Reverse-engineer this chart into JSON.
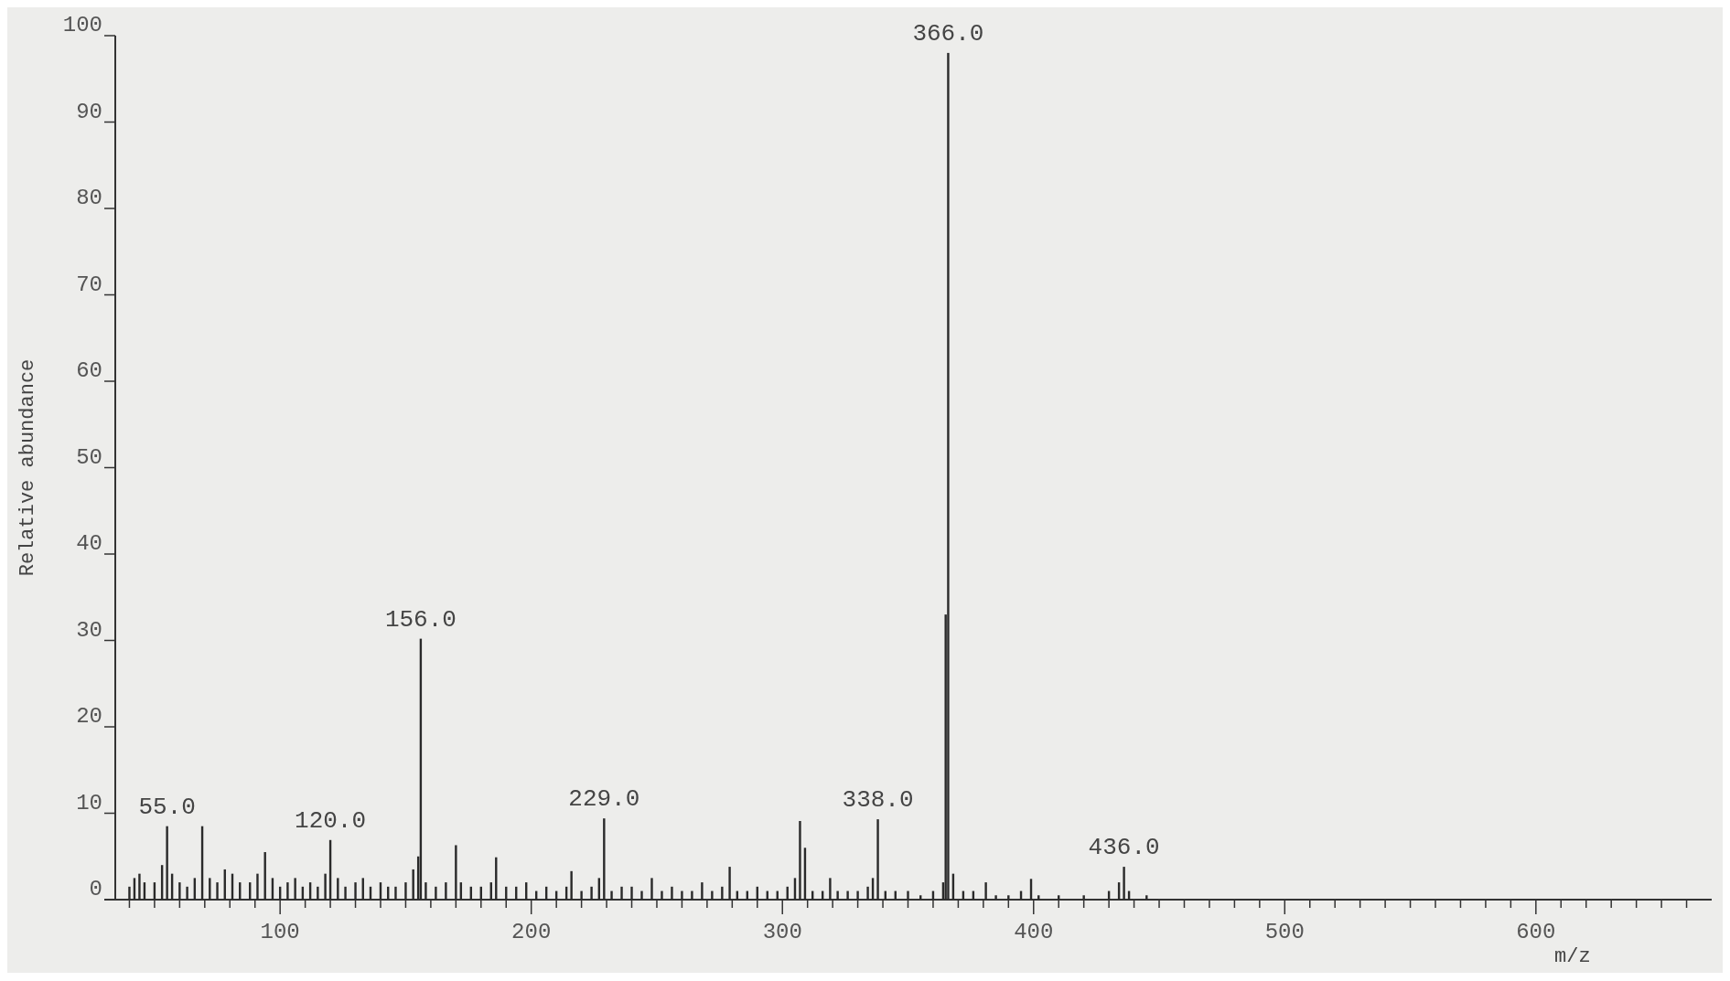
{
  "chart_data": {
    "type": "bar",
    "xlabel": "m/z",
    "ylabel": "Relative abundance",
    "color": "#2a2a2a",
    "xlim": [
      30,
      670
    ],
    "ylim": [
      0,
      100
    ],
    "xticks": [
      {
        "value": 40,
        "label": null
      },
      {
        "value": 50,
        "label": null
      },
      {
        "value": 60,
        "label": null
      },
      {
        "value": 70,
        "label": null
      },
      {
        "value": 80,
        "label": null
      },
      {
        "value": 90,
        "label": null
      },
      100,
      {
        "value": 110,
        "label": null
      },
      {
        "value": 120,
        "label": null
      },
      {
        "value": 130,
        "label": null
      },
      {
        "value": 140,
        "label": null
      },
      {
        "value": 150,
        "label": null
      },
      {
        "value": 160,
        "label": null
      },
      {
        "value": 170,
        "label": null
      },
      {
        "value": 180,
        "label": null
      },
      {
        "value": 190,
        "label": null
      },
      200,
      {
        "value": 210,
        "label": null
      },
      {
        "value": 220,
        "label": null
      },
      {
        "value": 230,
        "label": null
      },
      {
        "value": 240,
        "label": null
      },
      {
        "value": 250,
        "label": null
      },
      {
        "value": 260,
        "label": null
      },
      {
        "value": 270,
        "label": null
      },
      {
        "value": 280,
        "label": null
      },
      {
        "value": 290,
        "label": null
      },
      300,
      {
        "value": 310,
        "label": null
      },
      {
        "value": 320,
        "label": null
      },
      {
        "value": 330,
        "label": null
      },
      {
        "value": 340,
        "label": null
      },
      {
        "value": 350,
        "label": null
      },
      {
        "value": 360,
        "label": null
      },
      {
        "value": 370,
        "label": null
      },
      {
        "value": 380,
        "label": null
      },
      {
        "value": 390,
        "label": null
      },
      400,
      {
        "value": 410,
        "label": null
      },
      {
        "value": 420,
        "label": null
      },
      {
        "value": 430,
        "label": null
      },
      {
        "value": 440,
        "label": null
      },
      {
        "value": 450,
        "label": null
      },
      {
        "value": 460,
        "label": null
      },
      {
        "value": 470,
        "label": null
      },
      {
        "value": 480,
        "label": null
      },
      {
        "value": 490,
        "label": null
      },
      500,
      {
        "value": 510,
        "label": null
      },
      {
        "value": 520,
        "label": null
      },
      {
        "value": 530,
        "label": null
      },
      {
        "value": 540,
        "label": null
      },
      {
        "value": 550,
        "label": null
      },
      {
        "value": 560,
        "label": null
      },
      {
        "value": 570,
        "label": null
      },
      {
        "value": 580,
        "label": null
      },
      {
        "value": 590,
        "label": null
      },
      600,
      {
        "value": 610,
        "label": null
      },
      {
        "value": 620,
        "label": null
      },
      {
        "value": 630,
        "label": null
      },
      {
        "value": 640,
        "label": null
      },
      {
        "value": 650,
        "label": null
      },
      {
        "value": 660,
        "label": null
      }
    ],
    "yticks": [
      0,
      10,
      20,
      30,
      40,
      50,
      60,
      70,
      80,
      90,
      100
    ],
    "x": [
      40,
      42,
      44,
      46,
      50,
      53,
      55,
      57,
      60,
      63,
      66,
      69,
      72,
      75,
      78,
      81,
      84,
      88,
      91,
      94,
      97,
      100,
      103,
      106,
      109,
      112,
      115,
      118,
      120,
      123,
      126,
      130,
      133,
      136,
      140,
      143,
      146,
      150,
      153,
      155,
      156,
      158,
      162,
      166,
      170,
      172,
      176,
      180,
      184,
      186,
      190,
      194,
      198,
      202,
      206,
      210,
      214,
      216,
      220,
      224,
      227,
      229,
      232,
      236,
      240,
      244,
      248,
      252,
      256,
      260,
      264,
      268,
      272,
      276,
      279,
      282,
      286,
      290,
      294,
      298,
      302,
      305,
      307,
      309,
      312,
      316,
      319,
      322,
      326,
      330,
      334,
      336,
      338,
      341,
      345,
      350,
      355,
      360,
      364,
      365,
      366,
      368,
      372,
      376,
      381,
      385,
      390,
      395,
      399,
      402,
      410,
      420,
      430,
      434,
      436,
      438,
      445
    ],
    "values": [
      1.5,
      2.5,
      3,
      2,
      2,
      4,
      8.5,
      3,
      2,
      1.5,
      2.5,
      8.5,
      2.5,
      2,
      3.5,
      3,
      2,
      2,
      3,
      5.5,
      2.5,
      1.5,
      2,
      2.5,
      1.5,
      2,
      1.5,
      3,
      6.9,
      2.5,
      1.5,
      2,
      2.5,
      1.5,
      2,
      1.5,
      1.5,
      2,
      3.5,
      5,
      30.2,
      2,
      1.5,
      2,
      6.3,
      2,
      1.5,
      1.5,
      2,
      4.9,
      1.5,
      1.5,
      2,
      1,
      1.5,
      1,
      1.5,
      3.3,
      1,
      1.5,
      2.5,
      9.4,
      1,
      1.5,
      1.5,
      1,
      2.5,
      1,
      1.5,
      1,
      1,
      2,
      1,
      1.5,
      3.8,
      1,
      1,
      1.5,
      1,
      1,
      1.5,
      2.5,
      9.1,
      6,
      1,
      1,
      2.5,
      1,
      1,
      1,
      1.5,
      2.5,
      9.3,
      1,
      1,
      1,
      0.5,
      1,
      2,
      33,
      98,
      3,
      1,
      1,
      2,
      0.5,
      0.5,
      1,
      2.4,
      0.5,
      0.5,
      0.5,
      1,
      2,
      3.8,
      1,
      0.5
    ],
    "annotations": [
      {
        "text": "55.0",
        "x": 55,
        "y": 8.5
      },
      {
        "text": "120.0",
        "x": 120,
        "y": 6.9
      },
      {
        "text": "156.0",
        "x": 156,
        "y": 30.2
      },
      {
        "text": "229.0",
        "x": 229,
        "y": 9.4
      },
      {
        "text": "338.0",
        "x": 338,
        "y": 9.3
      },
      {
        "text": "366.0",
        "x": 366,
        "y": 98
      },
      {
        "text": "436.0",
        "x": 436,
        "y": 3.8
      }
    ],
    "grid": false
  }
}
